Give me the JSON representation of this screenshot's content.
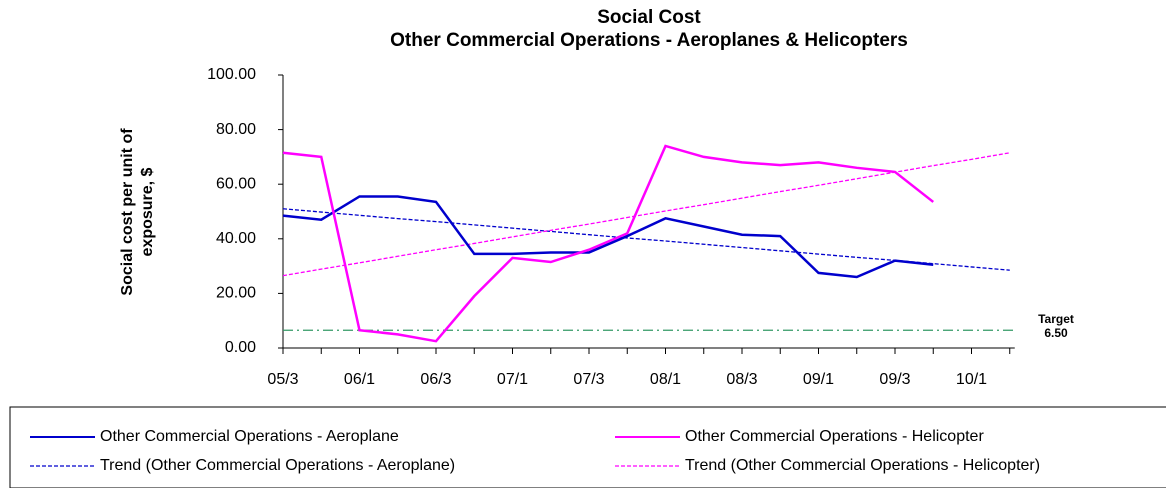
{
  "chart_data": {
    "type": "line",
    "title": "Social Cost",
    "subtitle": "Other Commercial Operations - Aeroplanes & Helicopters",
    "y_label": [
      "Social cost per unit of",
      "exposure, $"
    ],
    "categories": [
      "05/3",
      null,
      "06/1",
      null,
      "06/3",
      null,
      "07/1",
      null,
      "07/3",
      null,
      "08/1",
      null,
      "08/3",
      null,
      "09/1",
      null,
      "09/3",
      null,
      "10/1",
      null
    ],
    "ylim": [
      0,
      100
    ],
    "yticks": [
      {
        "value": 0,
        "label": "0.00"
      },
      {
        "value": 20,
        "label": "20.00"
      },
      {
        "value": 40,
        "label": "40.00"
      },
      {
        "value": 60,
        "label": "60.00"
      },
      {
        "value": 80,
        "label": "80.00"
      },
      {
        "value": 100,
        "label": "100.00"
      }
    ],
    "grid": false,
    "series": [
      {
        "name": "Other Commercial Operations - Aeroplane",
        "color": "#0000cc",
        "dash": false,
        "values": [
          48.5,
          47,
          55.5,
          55.5,
          53.5,
          34.5,
          34.5,
          35,
          35,
          41,
          47.5,
          44.5,
          41.5,
          41,
          27.5,
          26,
          32,
          30.5,
          null,
          null
        ]
      },
      {
        "name": "Other Commercial Operations - Helicopter",
        "color": "#ff00ff",
        "dash": false,
        "values": [
          71.5,
          70,
          6.5,
          5,
          2.5,
          19,
          33,
          31.5,
          36,
          42,
          74,
          70,
          68,
          67,
          68,
          66,
          64.5,
          53.5,
          null,
          null
        ]
      },
      {
        "name": "Trend (Other Commercial Operations - Aeroplane)",
        "color": "#0000cc",
        "dash": true,
        "values": [
          51.0,
          49.8,
          48.6,
          47.4,
          46.3,
          45.1,
          43.9,
          42.7,
          41.5,
          40.3,
          39.2,
          38.0,
          36.8,
          35.6,
          34.4,
          33.2,
          32.1,
          30.9,
          29.7,
          28.5
        ]
      },
      {
        "name": "Trend (Other Commercial Operations - Helicopter)",
        "color": "#ff00ff",
        "dash": true,
        "values": [
          26.5,
          28.9,
          31.2,
          33.6,
          36.0,
          38.3,
          40.7,
          43.1,
          45.4,
          47.8,
          50.2,
          52.5,
          54.9,
          57.3,
          59.6,
          62.0,
          64.4,
          66.8,
          69.1,
          71.5
        ]
      }
    ],
    "target": {
      "value": 6.5,
      "label": "Target",
      "value_label": "6.50",
      "color": "#339966"
    }
  }
}
